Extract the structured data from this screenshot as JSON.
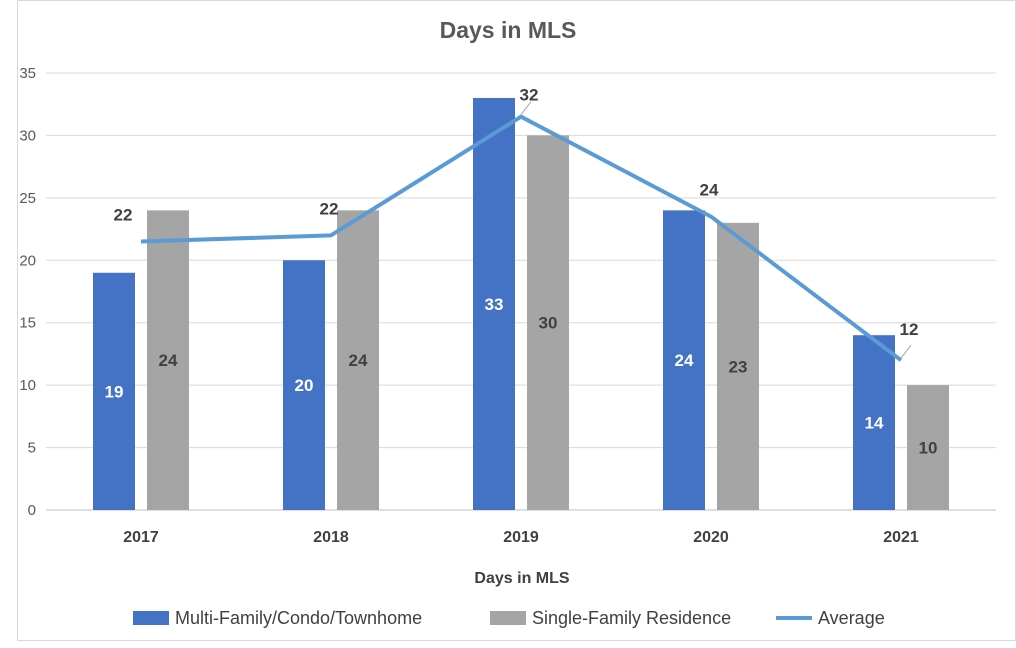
{
  "chart_data": {
    "type": "bar",
    "title": "Days in MLS",
    "xlabel": "Days in MLS",
    "ylabel": "",
    "categories": [
      "2017",
      "2018",
      "2019",
      "2020",
      "2021"
    ],
    "ylim": [
      0,
      35
    ],
    "yticks": [
      0,
      5,
      10,
      15,
      20,
      25,
      30,
      35
    ],
    "grid": true,
    "legend_position": "bottom",
    "series": [
      {
        "name": "Multi-Family/Condo/Townhome",
        "kind": "bar",
        "color": "#4472C4",
        "label_color": "#ffffff",
        "values": [
          19,
          20,
          33,
          24,
          14
        ],
        "labels": [
          "19",
          "20",
          "33",
          "24",
          "14"
        ]
      },
      {
        "name": "Single-Family Residence",
        "kind": "bar",
        "color": "#A5A5A5",
        "label_color": "#404040",
        "values": [
          24,
          24,
          30,
          23,
          10
        ],
        "labels": [
          "24",
          "24",
          "30",
          "23",
          "10"
        ]
      },
      {
        "name": "Average",
        "kind": "line",
        "color": "#5B9BD5",
        "label_color": "#404040",
        "values": [
          21.5,
          22,
          31.5,
          23.5,
          12
        ],
        "labels": [
          "22",
          "22",
          "32",
          "24",
          "12"
        ]
      }
    ]
  }
}
